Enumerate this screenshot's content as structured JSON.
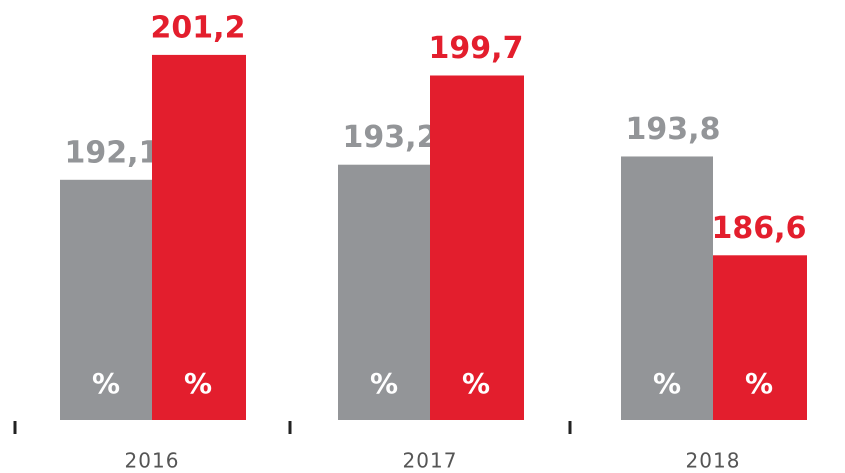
{
  "chart_data": {
    "type": "bar",
    "categories": [
      "2016",
      "2017",
      "2018"
    ],
    "series": [
      {
        "color": "#939598",
        "values": [
          192.1,
          193.2,
          193.8
        ],
        "value_labels": [
          "192,1",
          "193,2",
          "193,8"
        ],
        "inner_label": "%"
      },
      {
        "color": "#e31e2d",
        "values": [
          201.2,
          199.7,
          186.6
        ],
        "value_labels": [
          "201,2",
          "199,7",
          "186,6"
        ],
        "inner_label": "%"
      }
    ],
    "ylim": [
      174.6,
      205.2
    ]
  }
}
